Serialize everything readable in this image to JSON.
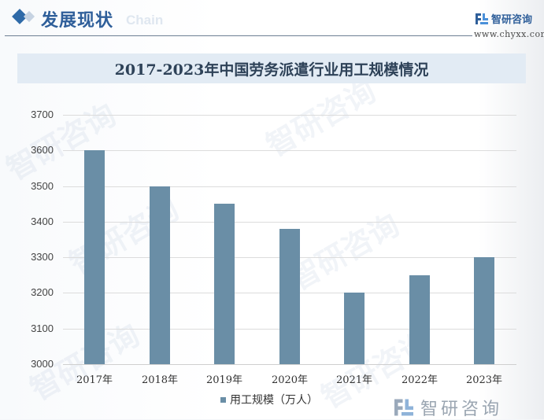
{
  "header": {
    "section_title": "发展现状",
    "section_subtitle": "Chain",
    "brand_name": "智研咨询",
    "brand_url": "www.chyxx.com"
  },
  "chart_title": "2017-2023年中国劳务派遣行业用工规模情况",
  "legend": {
    "label": "用工规模（万人）"
  },
  "footer": {
    "brand_name": "智研咨询"
  },
  "watermark_text": "智研咨询",
  "colors": {
    "bar": "#6a8ea6",
    "accent": "#2f6aa8",
    "title_band": "#e2ebf4"
  },
  "chart_data": {
    "type": "bar",
    "title": "2017-2023年中国劳务派遣行业用工规模情况",
    "categories": [
      "2017年",
      "2018年",
      "2019年",
      "2020年",
      "2021年",
      "2022年",
      "2023年"
    ],
    "series": [
      {
        "name": "用工规模（万人）",
        "values": [
          3600,
          3500,
          3450,
          3380,
          3200,
          3250,
          3300
        ]
      }
    ],
    "xlabel": "",
    "ylabel": "",
    "ylim": [
      3000,
      3700
    ],
    "yticks": [
      3000,
      3100,
      3200,
      3300,
      3400,
      3500,
      3600,
      3700
    ],
    "grid": true,
    "legend_position": "bottom"
  }
}
